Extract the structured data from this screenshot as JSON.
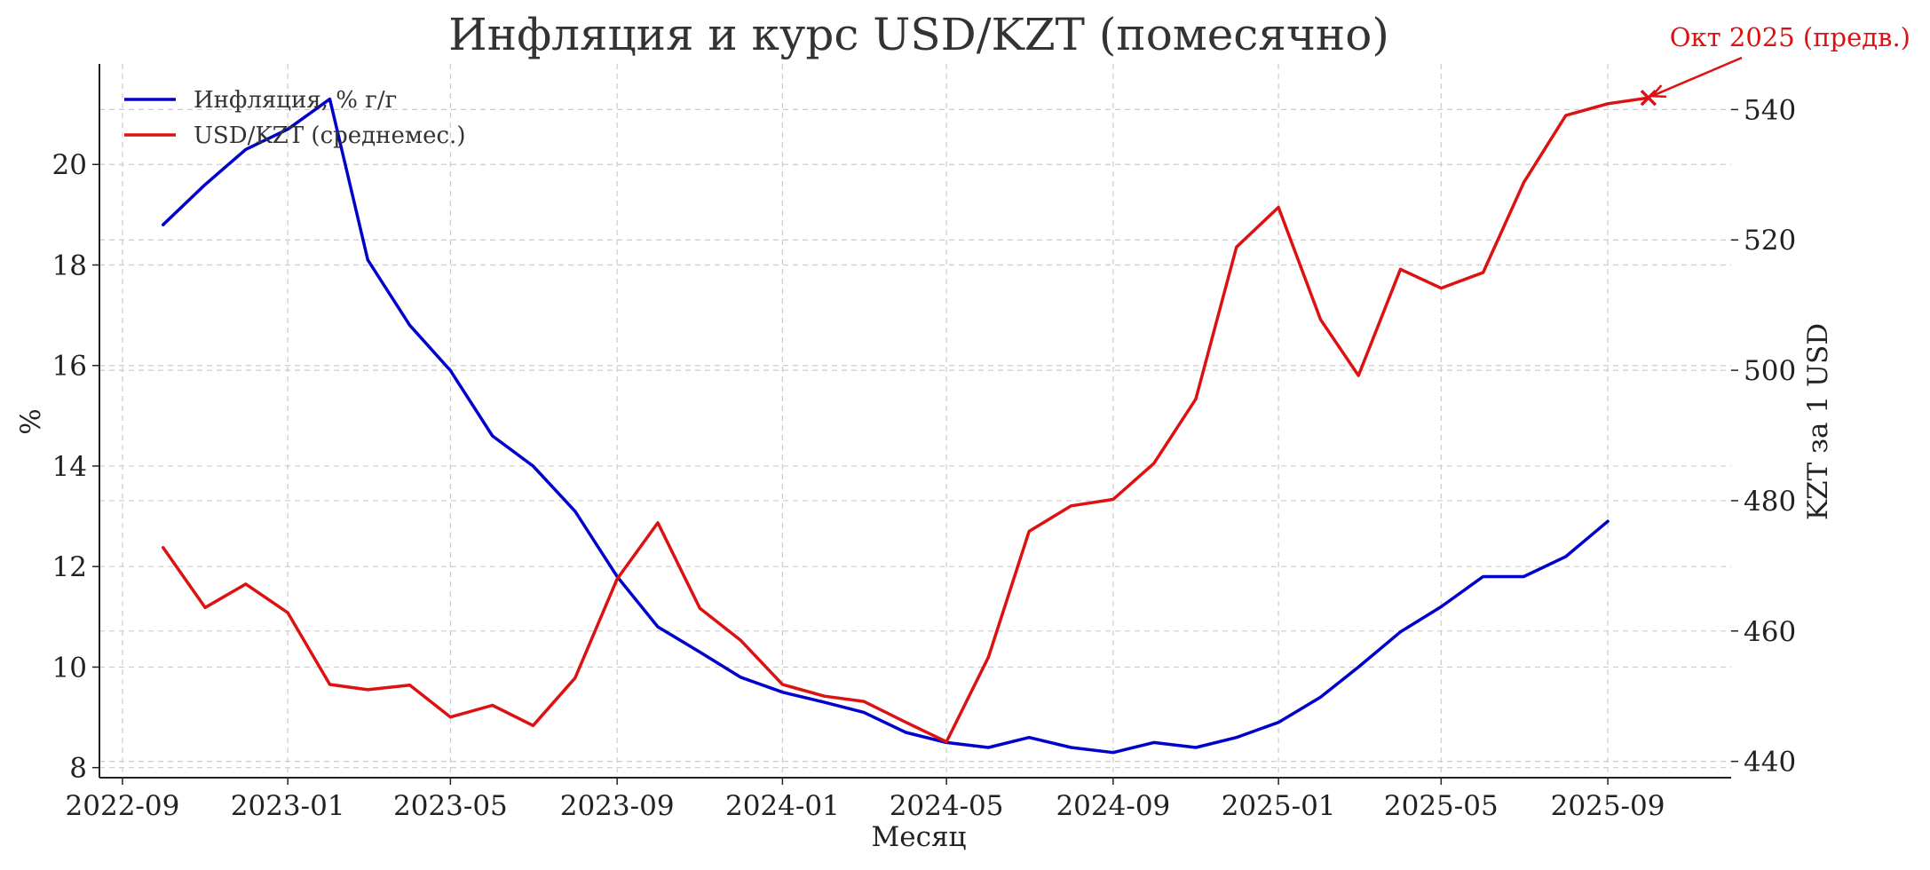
{
  "chart_data": {
    "type": "line",
    "title": "Инфляция и курс USD/KZT (помесячно)",
    "xlabel": "Месяц",
    "ylabel_left": "%",
    "ylabel_right": "KZT за 1 USD",
    "x_ticks": [
      "2022-09",
      "2023-01",
      "2023-05",
      "2023-09",
      "2024-01",
      "2024-05",
      "2024-09",
      "2025-01",
      "2025-05",
      "2025-09"
    ],
    "y_left_ticks": [
      8,
      10,
      12,
      14,
      16,
      18,
      20
    ],
    "y_right_ticks": [
      440,
      460,
      480,
      500,
      520,
      540
    ],
    "y_left_range": [
      7.8,
      22.0
    ],
    "y_right_range": [
      437.5,
      547.0
    ],
    "x_range": [
      "2022-08-15",
      "2025-12-01"
    ],
    "grid": true,
    "legend_position": "top-left",
    "series": [
      {
        "name": "Инфляция, % г/г",
        "axis": "left",
        "color": "#0000cc",
        "x": [
          "2022-10",
          "2022-11",
          "2022-12",
          "2023-01",
          "2023-02",
          "2023-03",
          "2023-04",
          "2023-05",
          "2023-06",
          "2023-07",
          "2023-08",
          "2023-09",
          "2023-10",
          "2023-11",
          "2023-12",
          "2024-01",
          "2024-02",
          "2024-03",
          "2024-04",
          "2024-05",
          "2024-06",
          "2024-07",
          "2024-08",
          "2024-09",
          "2024-10",
          "2024-11",
          "2024-12",
          "2025-01",
          "2025-02",
          "2025-03",
          "2025-04",
          "2025-05",
          "2025-06",
          "2025-07",
          "2025-08",
          "2025-09"
        ],
        "values": [
          18.8,
          19.6,
          20.3,
          20.7,
          21.3,
          18.1,
          16.8,
          15.9,
          14.6,
          14.0,
          13.1,
          11.8,
          10.8,
          10.3,
          9.8,
          9.5,
          9.3,
          9.1,
          8.7,
          8.5,
          8.4,
          8.6,
          8.4,
          8.3,
          8.5,
          8.4,
          8.6,
          8.9,
          9.4,
          10.0,
          10.7,
          11.2,
          11.8,
          11.8,
          12.2,
          12.9
        ]
      },
      {
        "name": "USD/KZT (среднемес.)",
        "axis": "right",
        "color": "#dd1111",
        "x": [
          "2022-10",
          "2022-11",
          "2022-12",
          "2023-01",
          "2023-02",
          "2023-03",
          "2023-04",
          "2023-05",
          "2023-06",
          "2023-07",
          "2023-08",
          "2023-09",
          "2023-10",
          "2023-11",
          "2023-12",
          "2024-01",
          "2024-02",
          "2024-03",
          "2024-04",
          "2024-05",
          "2024-06",
          "2024-07",
          "2024-08",
          "2024-09",
          "2024-10",
          "2024-11",
          "2024-12",
          "2025-01",
          "2025-02",
          "2025-03",
          "2025-04",
          "2025-05",
          "2025-06",
          "2025-07",
          "2025-08",
          "2025-09",
          "2025-10"
        ],
        "values": [
          472.8,
          463.6,
          467.2,
          462.8,
          451.8,
          451.0,
          451.7,
          446.8,
          448.6,
          445.5,
          452.8,
          468.0,
          476.6,
          463.5,
          458.6,
          451.8,
          450.0,
          449.2,
          446.0,
          443.0,
          456.0,
          475.3,
          479.2,
          480.2,
          485.7,
          495.6,
          518.9,
          525.0,
          507.8,
          499.2,
          515.5,
          512.6,
          515.0,
          528.8,
          539.1,
          540.9,
          541.8
        ]
      }
    ],
    "annotation": {
      "text": "Окт 2025 (предв.)",
      "x": "2025-10",
      "value": 541.8,
      "axis": "right",
      "color": "#dd1111"
    }
  }
}
